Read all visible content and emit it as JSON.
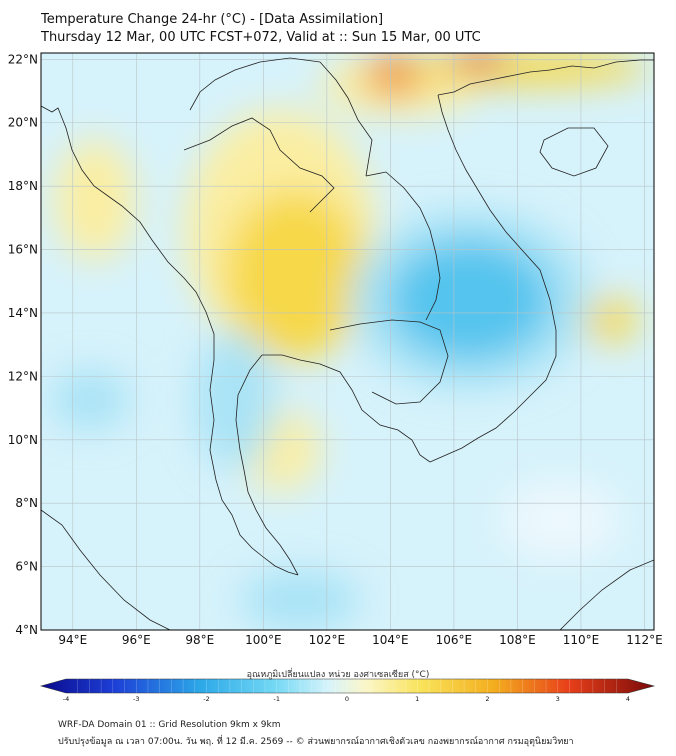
{
  "title": {
    "line1": "Temperature Change 24-hr (°C) - [Data Assimilation]",
    "line2": "Thursday 12 Mar, 00 UTC FCST+072, Valid at :: Sun 15 Mar, 00 UTC"
  },
  "map": {
    "lat_labels": [
      "22°N",
      "20°N",
      "18°N",
      "16°N",
      "14°N",
      "12°N",
      "10°N",
      "8°N",
      "6°N",
      "4°N"
    ],
    "lon_labels": [
      "94°E",
      "96°E",
      "98°E",
      "100°E",
      "102°E",
      "104°E",
      "106°E",
      "108°E",
      "110°E",
      "112°E"
    ],
    "lat_values": [
      22,
      20,
      18,
      16,
      14,
      12,
      10,
      8,
      6,
      4
    ],
    "lon_values": [
      94,
      96,
      98,
      100,
      102,
      104,
      106,
      108,
      110,
      112
    ],
    "lon_range": [
      93,
      112.3
    ],
    "lat_range": [
      4,
      22.2
    ],
    "field_colors": {
      "background": "#d6f2fb",
      "warm_light": "#fbeea2",
      "warm": "#f7d84a",
      "hot": "#f08a1a",
      "hottest": "#e33216",
      "cool_light": "#a9e3f6",
      "cool": "#54c4ee",
      "land_outline": "#222222"
    }
  },
  "colorbar": {
    "title": "อุณหภูมิเปลี่ยนแปลง หน่วย องศาเซลเซียส (°C)",
    "ticks": [
      "-4",
      "-3",
      "-2",
      "-1",
      "0",
      "1",
      "2",
      "3",
      "4"
    ],
    "tick_values": [
      -4,
      -3,
      -2,
      -1,
      0,
      1,
      2,
      3,
      4
    ],
    "range": [
      -4,
      4
    ]
  },
  "footer": {
    "line1": "WRF-DA Domain 01 :: Grid Resolution 9km x 9km",
    "line2": "ปรับปรุงข้อมูล ณ เวลา 07:00น. วัน พฤ. ที่ 12 มี.ค. 2569 -- © ส่วนพยากรณ์อากาศเชิงตัวเลข กองพยากรณ์อากาศ กรมอุตุนิยมวิทยา"
  }
}
